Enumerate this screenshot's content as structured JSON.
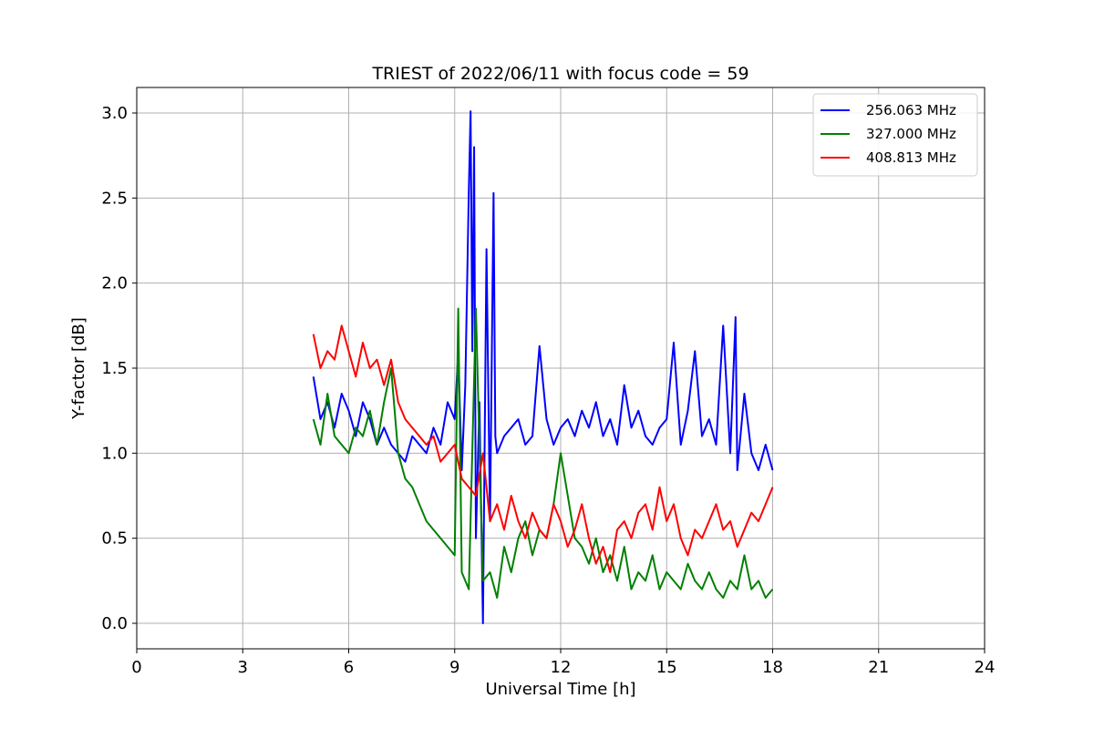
{
  "chart_data": {
    "type": "line",
    "title": "TRIEST of 2022/06/11 with focus code = 59",
    "xlabel": "Universal Time [h]",
    "ylabel": "Y-factor [dB]",
    "xlim": [
      0,
      24
    ],
    "ylim": [
      -0.15,
      3.15
    ],
    "xticks": [
      0,
      3,
      6,
      9,
      12,
      15,
      18,
      21,
      24
    ],
    "yticks": [
      0.0,
      0.5,
      1.0,
      1.5,
      2.0,
      2.5,
      3.0
    ],
    "ytick_labels": [
      "0.0",
      "0.5",
      "1.0",
      "1.5",
      "2.0",
      "2.5",
      "3.0"
    ],
    "grid": true,
    "legend_position": "top-right",
    "series": [
      {
        "name": "256.063 MHz",
        "color": "#0000ff",
        "x": [
          5.0,
          5.2,
          5.4,
          5.6,
          5.8,
          6.0,
          6.2,
          6.4,
          6.6,
          6.8,
          7.0,
          7.2,
          7.4,
          7.6,
          7.8,
          8.0,
          8.2,
          8.4,
          8.6,
          8.8,
          9.0,
          9.1,
          9.2,
          9.3,
          9.4,
          9.45,
          9.5,
          9.55,
          9.6,
          9.7,
          9.8,
          9.9,
          10.0,
          10.1,
          10.15,
          10.2,
          10.4,
          10.6,
          10.8,
          11.0,
          11.2,
          11.4,
          11.6,
          11.8,
          12.0,
          12.2,
          12.4,
          12.6,
          12.8,
          13.0,
          13.2,
          13.4,
          13.6,
          13.8,
          14.0,
          14.2,
          14.4,
          14.6,
          14.8,
          15.0,
          15.2,
          15.4,
          15.6,
          15.8,
          16.0,
          16.2,
          16.4,
          16.6,
          16.8,
          16.95,
          17.0,
          17.2,
          17.4,
          17.6,
          17.8,
          18.0
        ],
        "y": [
          1.45,
          1.2,
          1.3,
          1.15,
          1.35,
          1.25,
          1.1,
          1.3,
          1.2,
          1.05,
          1.15,
          1.05,
          1.0,
          0.95,
          1.1,
          1.05,
          1.0,
          1.15,
          1.05,
          1.3,
          1.2,
          1.6,
          0.9,
          1.4,
          2.55,
          3.01,
          1.6,
          2.8,
          0.5,
          1.3,
          0.0,
          2.2,
          0.6,
          2.53,
          1.1,
          1.0,
          1.1,
          1.15,
          1.2,
          1.05,
          1.1,
          1.63,
          1.2,
          1.05,
          1.15,
          1.2,
          1.1,
          1.25,
          1.15,
          1.3,
          1.1,
          1.2,
          1.05,
          1.4,
          1.15,
          1.25,
          1.1,
          1.05,
          1.15,
          1.2,
          1.65,
          1.05,
          1.25,
          1.6,
          1.1,
          1.2,
          1.05,
          1.75,
          1.0,
          1.8,
          0.9,
          1.35,
          1.0,
          0.9,
          1.05,
          0.9
        ]
      },
      {
        "name": "327.000 MHz",
        "color": "#008000",
        "x": [
          5.0,
          5.2,
          5.4,
          5.6,
          5.8,
          6.0,
          6.2,
          6.4,
          6.6,
          6.8,
          7.0,
          7.2,
          7.4,
          7.6,
          7.8,
          8.0,
          8.2,
          8.4,
          8.6,
          8.8,
          9.0,
          9.1,
          9.2,
          9.4,
          9.6,
          9.8,
          10.0,
          10.2,
          10.4,
          10.6,
          10.8,
          11.0,
          11.2,
          11.4,
          11.6,
          11.8,
          12.0,
          12.2,
          12.4,
          12.6,
          12.8,
          13.0,
          13.2,
          13.4,
          13.6,
          13.8,
          14.0,
          14.2,
          14.4,
          14.6,
          14.8,
          15.0,
          15.2,
          15.4,
          15.6,
          15.8,
          16.0,
          16.2,
          16.4,
          16.6,
          16.8,
          17.0,
          17.2,
          17.4,
          17.6,
          17.8,
          18.0
        ],
        "y": [
          1.2,
          1.05,
          1.35,
          1.1,
          1.05,
          1.0,
          1.15,
          1.1,
          1.25,
          1.05,
          1.3,
          1.5,
          1.0,
          0.85,
          0.8,
          0.7,
          0.6,
          0.55,
          0.5,
          0.45,
          0.4,
          1.85,
          0.3,
          0.2,
          1.85,
          0.25,
          0.3,
          0.15,
          0.45,
          0.3,
          0.5,
          0.6,
          0.4,
          0.55,
          0.5,
          0.7,
          1.0,
          0.75,
          0.5,
          0.45,
          0.35,
          0.5,
          0.3,
          0.4,
          0.25,
          0.45,
          0.2,
          0.3,
          0.25,
          0.4,
          0.2,
          0.3,
          0.25,
          0.2,
          0.35,
          0.25,
          0.2,
          0.3,
          0.2,
          0.15,
          0.25,
          0.2,
          0.4,
          0.2,
          0.25,
          0.15,
          0.2
        ]
      },
      {
        "name": "408.813 MHz",
        "color": "#ff0000",
        "x": [
          5.0,
          5.2,
          5.4,
          5.6,
          5.8,
          6.0,
          6.2,
          6.4,
          6.6,
          6.8,
          7.0,
          7.2,
          7.4,
          7.6,
          7.8,
          8.0,
          8.2,
          8.4,
          8.6,
          8.8,
          9.0,
          9.2,
          9.4,
          9.6,
          9.8,
          10.0,
          10.2,
          10.4,
          10.6,
          10.8,
          11.0,
          11.2,
          11.4,
          11.6,
          11.8,
          12.0,
          12.2,
          12.4,
          12.6,
          12.8,
          13.0,
          13.2,
          13.4,
          13.6,
          13.8,
          14.0,
          14.2,
          14.4,
          14.6,
          14.8,
          15.0,
          15.2,
          15.4,
          15.6,
          15.8,
          16.0,
          16.2,
          16.4,
          16.6,
          16.8,
          17.0,
          17.2,
          17.4,
          17.6,
          17.8,
          18.0
        ],
        "y": [
          1.7,
          1.5,
          1.6,
          1.55,
          1.75,
          1.6,
          1.45,
          1.65,
          1.5,
          1.55,
          1.4,
          1.55,
          1.3,
          1.2,
          1.15,
          1.1,
          1.05,
          1.1,
          0.95,
          1.0,
          1.05,
          0.85,
          0.8,
          0.75,
          1.0,
          0.6,
          0.7,
          0.55,
          0.75,
          0.6,
          0.5,
          0.65,
          0.55,
          0.5,
          0.7,
          0.6,
          0.45,
          0.55,
          0.7,
          0.5,
          0.35,
          0.45,
          0.3,
          0.55,
          0.6,
          0.5,
          0.65,
          0.7,
          0.55,
          0.8,
          0.6,
          0.7,
          0.5,
          0.4,
          0.55,
          0.5,
          0.6,
          0.7,
          0.55,
          0.6,
          0.45,
          0.55,
          0.65,
          0.6,
          0.7,
          0.8
        ]
      }
    ]
  }
}
